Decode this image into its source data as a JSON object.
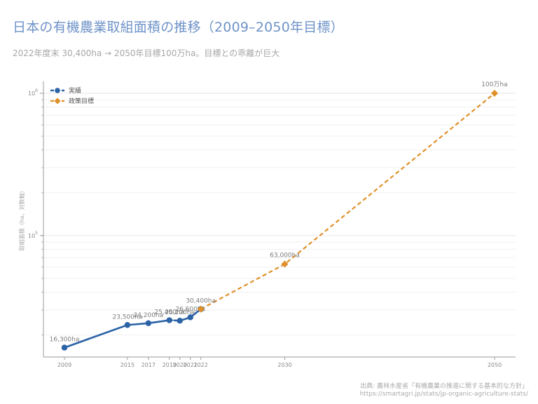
{
  "header": {
    "title": "日本の有機農業取組面積の推移（2009–2050年目標）",
    "subtitle": "2022年度末 30,400ha → 2050年目標100万ha。目標との乖離が巨大"
  },
  "source": {
    "line1": "出典: 農林水産省「有機農業の推進に関する基本的な方針」",
    "line2": "https://smartagri.jp/stats/jp-organic-agriculture-stats/"
  },
  "colors": {
    "actual": "#2b63a6",
    "target": "#e0902a"
  },
  "chart_data": {
    "type": "line",
    "title": "日本の有機農業取組面積の推移（2009–2050年目標）",
    "ylabel": "取組面積（ha、対数軸）",
    "y_scale": "log",
    "ylim": [
      14000,
      1000000
    ],
    "xlim": [
      2009,
      2050
    ],
    "grid": true,
    "legend_placement": "top-left",
    "x_ticks": [
      {
        "value": 2009,
        "label": "2009"
      },
      {
        "value": 2015,
        "label": "2015"
      },
      {
        "value": 2017,
        "label": "2017"
      },
      {
        "value": 2019,
        "label": "2019"
      },
      {
        "value": 2020,
        "label": "2020"
      },
      {
        "value": 2021,
        "label": "2021"
      },
      {
        "value": 2022,
        "label": "2022"
      },
      {
        "value": 2030,
        "label": "2030"
      },
      {
        "value": 2050,
        "label": "2050"
      }
    ],
    "y_ticks": [
      {
        "value": 100000,
        "base": "10",
        "exp": "5"
      },
      {
        "value": 1000000,
        "base": "10",
        "exp": "6"
      }
    ],
    "series": [
      {
        "name": "実績",
        "style": "solid-dashed",
        "marker": "circle",
        "points": [
          {
            "x": 2009,
            "y": 16300,
            "label": "16,300ha"
          },
          {
            "x": 2015,
            "y": 23500,
            "label": "23,500ha"
          },
          {
            "x": 2017,
            "y": 24200,
            "label": "24,200ha"
          },
          {
            "x": 2019,
            "y": 25400,
            "label": "25,400ha"
          },
          {
            "x": 2020,
            "y": 25200,
            "label": "25,200ha"
          },
          {
            "x": 2021,
            "y": 26600,
            "label": "26,600ha"
          },
          {
            "x": 2022,
            "y": 30400,
            "label": "30,400ha"
          }
        ]
      },
      {
        "name": "政策目標",
        "style": "dashed",
        "marker": "diamond",
        "points": [
          {
            "x": 2022,
            "y": 30400,
            "label": ""
          },
          {
            "x": 2030,
            "y": 63000,
            "label": "63,000ha"
          },
          {
            "x": 2050,
            "y": 1000000,
            "label": "100万ha"
          }
        ]
      }
    ]
  }
}
